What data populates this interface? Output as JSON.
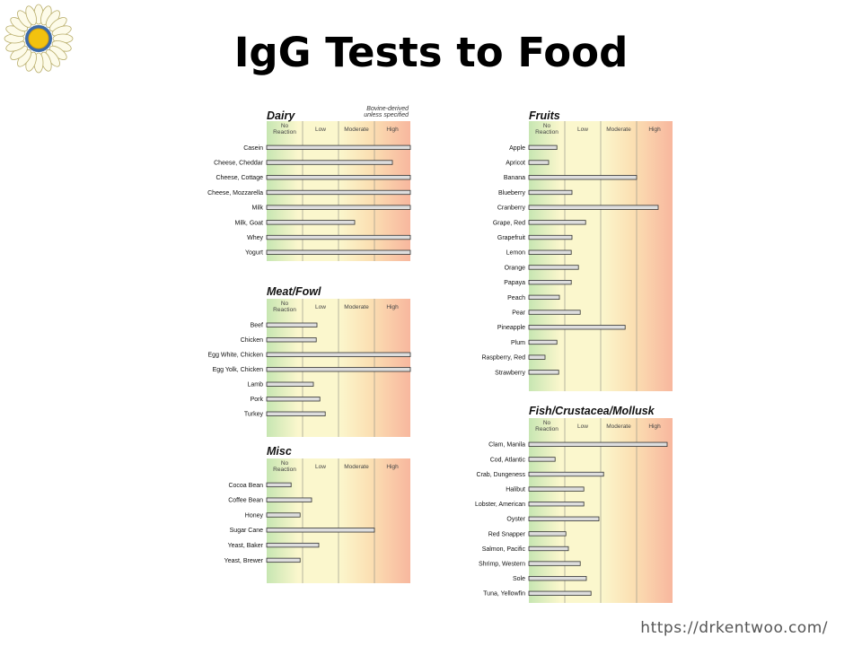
{
  "title": "IgG Tests to Food",
  "footer_url": "https://drkentwoo.com/",
  "colors": {
    "zone_no_reaction": "#c7e6b2",
    "zone_low": "#fbf7cd",
    "zone_moderate": "#fbe0b3",
    "zone_high": "#f8b79e",
    "bar_fill": "#dddddd",
    "bar_stroke": "#333333"
  },
  "chart_data": [
    {
      "type": "bar",
      "orientation": "horizontal",
      "title": "Dairy",
      "note": [
        "Bovine-derived",
        "unless specified"
      ],
      "levels": [
        "No Reaction",
        "Low",
        "Moderate",
        "High"
      ],
      "categories": [
        "Casein",
        "Cheese, Cheddar",
        "Cheese, Cottage",
        "Cheese, Mozzarella",
        "Milk",
        "Milk, Goat",
        "Whey",
        "Yogurt"
      ],
      "values": [
        4.0,
        3.5,
        4.0,
        4.0,
        4.0,
        2.45,
        4.0,
        4.0
      ],
      "xlim": [
        0,
        4
      ]
    },
    {
      "type": "bar",
      "orientation": "horizontal",
      "title": "Meat/Fowl",
      "levels": [
        "No Reaction",
        "Low",
        "Moderate",
        "High"
      ],
      "categories": [
        "Beef",
        "Chicken",
        "Egg White, Chicken",
        "Egg Yolk, Chicken",
        "Lamb",
        "Pork",
        "Turkey"
      ],
      "values": [
        1.4,
        1.38,
        4.0,
        4.0,
        1.3,
        1.48,
        1.63
      ],
      "xlim": [
        0,
        4
      ]
    },
    {
      "type": "bar",
      "orientation": "horizontal",
      "title": "Misc",
      "levels": [
        "No Reaction",
        "Low",
        "Moderate",
        "High"
      ],
      "categories": [
        "Cocoa Bean",
        "Coffee Bean",
        "Honey",
        "Sugar Cane",
        "Yeast, Baker",
        "Yeast, Brewer"
      ],
      "values": [
        0.68,
        1.25,
        0.93,
        3.0,
        1.45,
        0.93
      ],
      "xlim": [
        0,
        4
      ]
    },
    {
      "type": "bar",
      "orientation": "horizontal",
      "title": "Fruits",
      "levels": [
        "No Reaction",
        "Low",
        "Moderate",
        "High"
      ],
      "categories": [
        "Apple",
        "Apricot",
        "Banana",
        "Blueberry",
        "Cranberry",
        "Grape, Red",
        "Grapefruit",
        "Lemon",
        "Orange",
        "Papaya",
        "Peach",
        "Pear",
        "Pineapple",
        "Plum",
        "Raspberry, Red",
        "Strawberry"
      ],
      "values": [
        0.78,
        0.55,
        3.0,
        1.2,
        3.6,
        1.58,
        1.2,
        1.18,
        1.38,
        1.18,
        0.85,
        1.43,
        2.68,
        0.78,
        0.45,
        0.83
      ],
      "xlim": [
        0,
        4
      ]
    },
    {
      "type": "bar",
      "orientation": "horizontal",
      "title": "Fish/Crustacea/Mollusk",
      "levels": [
        "No Reaction",
        "Low",
        "Moderate",
        "High"
      ],
      "categories": [
        "Clam, Manila",
        "Cod, Atlantic",
        "Crab, Dungeness",
        "Halibut",
        "Lobster, American",
        "Oyster",
        "Red Snapper",
        "Salmon, Pacific",
        "Shrimp, Western",
        "Sole",
        "Tuna, Yellowfin"
      ],
      "values": [
        3.85,
        0.73,
        2.08,
        1.53,
        1.53,
        1.95,
        1.03,
        1.1,
        1.43,
        1.6,
        1.73
      ],
      "xlim": [
        0,
        4
      ]
    }
  ]
}
